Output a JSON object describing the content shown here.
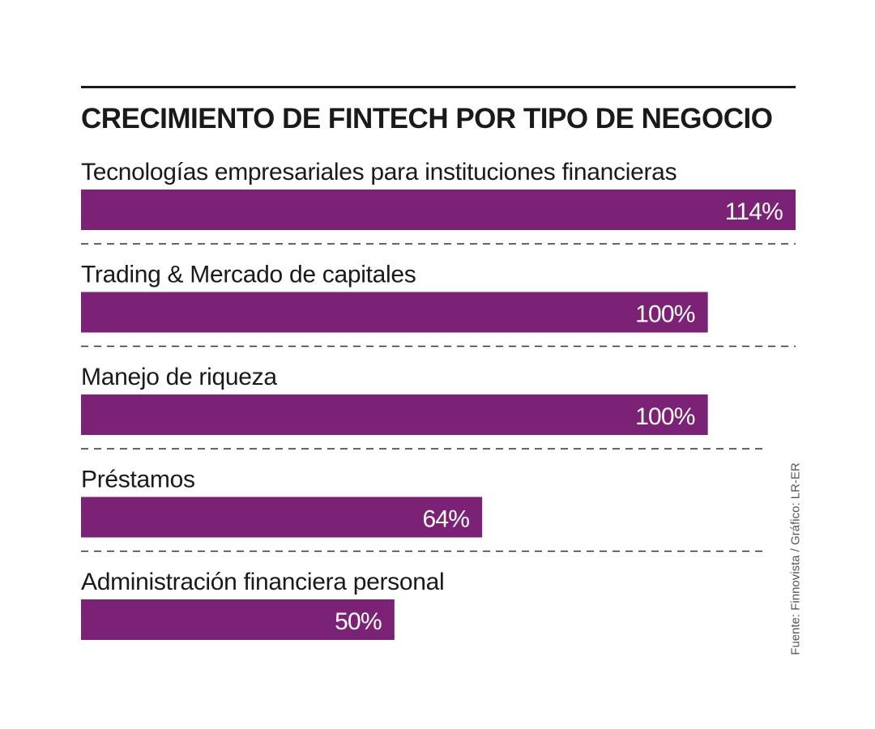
{
  "chart_data": {
    "type": "bar",
    "orientation": "horizontal",
    "title": "CRECIMIENTO DE FINTECH POR TIPO DE NEGOCIO",
    "categories": [
      "Tecnologías empresariales para instituciones financieras",
      "Trading & Mercado de capitales",
      "Manejo de riqueza",
      "Préstamos",
      "Administración financiera personal"
    ],
    "values": [
      114,
      100,
      100,
      64,
      50
    ],
    "data_labels": [
      "114%",
      "100%",
      "100%",
      "64%",
      "50%"
    ],
    "unit": "%",
    "xlim": [
      0,
      114
    ],
    "grid": false,
    "legend": "none",
    "bar_color": "#7b2277",
    "source": "Fuente: Finnovista / Gráfico: LR-ER"
  }
}
